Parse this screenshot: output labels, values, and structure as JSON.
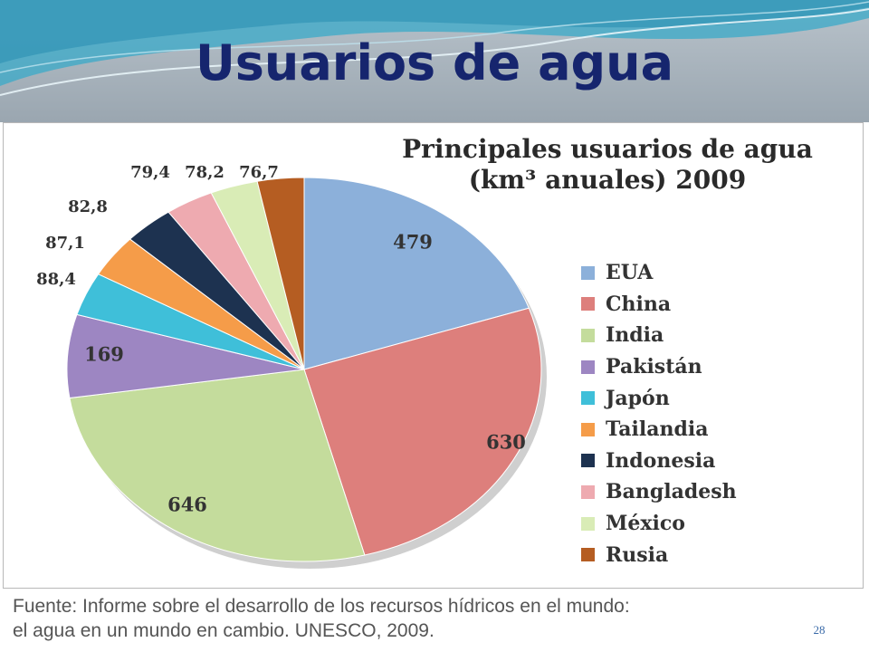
{
  "slide": {
    "title": "Usuarios de agua",
    "source_line1": "Fuente: Informe sobre el desarrollo de los recursos hídricos en el mundo:",
    "source_line2": "el agua en un mundo en cambio. UNESCO, 2009.",
    "page_number": "28"
  },
  "chart_data": {
    "type": "pie",
    "title_line1": "Principales usuarios de agua",
    "title_line2": "(km³ anuales) 2009",
    "legend_position": "right",
    "start_angle_deg": 0,
    "direction": "clockwise",
    "slices": [
      {
        "name": "EUA",
        "value": 479,
        "label": "479",
        "color": "#8cb0da"
      },
      {
        "name": "China",
        "value": 630,
        "label": "630",
        "color": "#dd7f7c"
      },
      {
        "name": "India",
        "value": 646,
        "label": "646",
        "color": "#c4dc9c"
      },
      {
        "name": "Pakistán",
        "value": 169,
        "label": "169",
        "color": "#9d86c2"
      },
      {
        "name": "Japón",
        "value": 88.4,
        "label": "88,4",
        "color": "#3fbfd9"
      },
      {
        "name": "Tailandia",
        "value": 87.1,
        "label": "87,1",
        "color": "#f59c49"
      },
      {
        "name": "Indonesia",
        "value": 82.8,
        "label": "82,8",
        "color": "#1d3250"
      },
      {
        "name": "Bangladesh",
        "value": 79.4,
        "label": "79,4",
        "color": "#eeaab0"
      },
      {
        "name": "México",
        "value": 78.2,
        "label": "78,2",
        "color": "#d9ecb6"
      },
      {
        "name": "Rusia",
        "value": 76.7,
        "label": "76,7",
        "color": "#b55d22"
      }
    ]
  }
}
